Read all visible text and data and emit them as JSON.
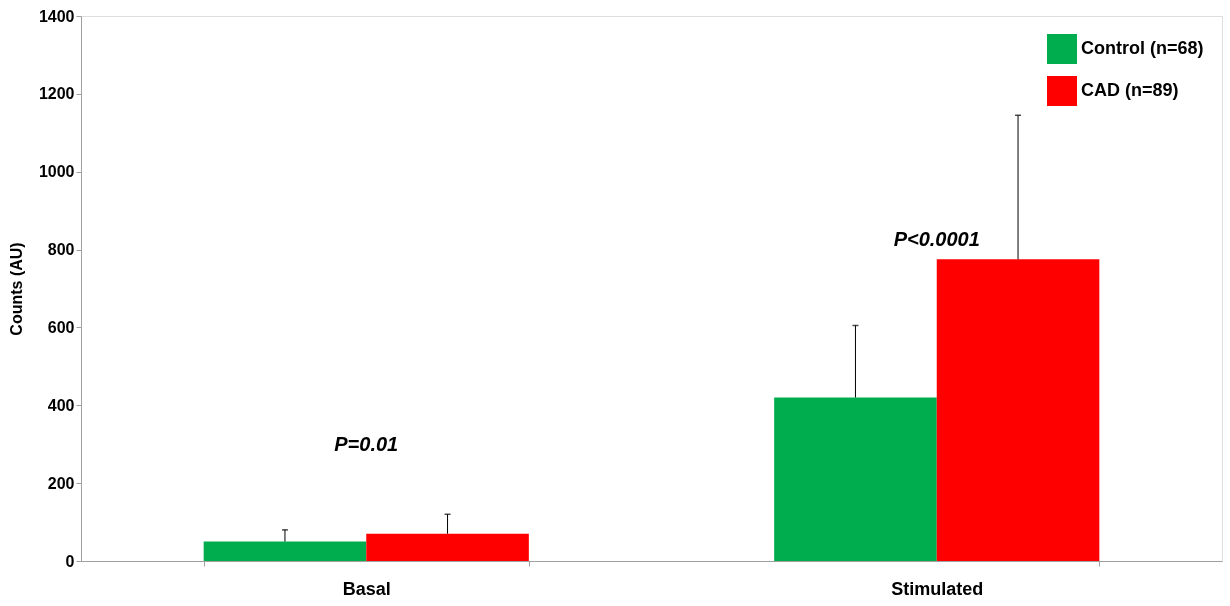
{
  "chart_data": {
    "type": "bar",
    "ylabel": "Counts (AU)",
    "categories": [
      "Basal",
      "Stimulated"
    ],
    "series": [
      {
        "name": "Control (n=68)",
        "color": "#00ad4e",
        "values": [
          50,
          420
        ],
        "errors": [
          [
            50,
            80
          ],
          [
            420,
            605
          ]
        ]
      },
      {
        "name": "CAD (n=89)",
        "color": "#ff0000",
        "values": [
          70,
          775
        ],
        "errors": [
          [
            70,
            120
          ],
          [
            775,
            1145
          ]
        ]
      }
    ],
    "ylim": [
      0,
      1400
    ],
    "yticks": [
      0,
      200,
      400,
      600,
      800,
      1000,
      1200,
      1400
    ],
    "annotations": [
      "P=0.01",
      "P<0.0001"
    ],
    "legend": "top right",
    "grid": false
  }
}
